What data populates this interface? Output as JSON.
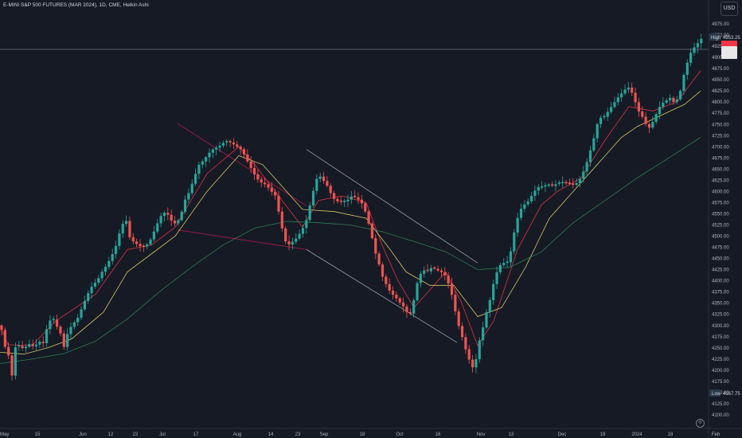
{
  "header": {
    "symbol_title": "E-MINI S&P 500 FUTURES (MAR 2024), 1D, CME, Heikin Ashi",
    "currency": "USD"
  },
  "colors": {
    "up": "#26a69a",
    "down": "#ef5350",
    "ma_fast": "#f23645",
    "ma_mid": "#e8d86a",
    "ma_slow": "#2e8b57",
    "trend_red": "#c2185b",
    "trend_white": "#b2b5be",
    "bg": "#161a25"
  },
  "price_axis": {
    "labels": [
      "4975.00",
      "4950.00",
      "4925.00",
      "4900.00",
      "4875.00",
      "4850.00",
      "4825.00",
      "4800.00",
      "4775.00",
      "4750.00",
      "4725.00",
      "4700.00",
      "4675.00",
      "4650.00",
      "4625.00",
      "4600.00",
      "4575.00",
      "4550.00",
      "4525.00",
      "4500.00",
      "4475.00",
      "4450.00",
      "4425.00",
      "4400.00",
      "4375.00",
      "4350.00",
      "4325.00",
      "4300.00",
      "4275.00",
      "4250.00",
      "4225.00",
      "4200.00",
      "4175.00",
      "4150.00",
      "4125.00",
      "4100.00"
    ]
  },
  "markers": {
    "high_label": "High",
    "high_value": "4953.25",
    "low_label": "Low",
    "low_value": "4167.75"
  },
  "time_axis": {
    "labels": [
      "May",
      "15",
      "Jun",
      "12",
      "22",
      "Jul",
      "17",
      "Aug",
      "14",
      "23",
      "Sep",
      "18",
      "Oct",
      "16",
      "Nov",
      "13",
      "Dec",
      "18",
      "2024",
      "18",
      "Feb"
    ]
  },
  "chart_data": {
    "type": "candlestick",
    "title": "E-MINI S&P 500 FUTURES (MAR 2024), 1D, CME, Heikin Ashi",
    "ylim": [
      4100,
      5000
    ],
    "y_ticks": [
      4975,
      4950,
      4925,
      4900,
      4875,
      4850,
      4825,
      4800,
      4775,
      4750,
      4725,
      4700,
      4675,
      4650,
      4625,
      4600,
      4575,
      4550,
      4525,
      4500,
      4475,
      4450,
      4425,
      4400,
      4375,
      4350,
      4325,
      4300,
      4275,
      4250,
      4225,
      4200,
      4175,
      4150,
      4125,
      4100
    ],
    "x_labels": [
      "May",
      "15",
      "Jun",
      "12",
      "22",
      "Jul",
      "17",
      "Aug",
      "14",
      "23",
      "Sep",
      "18",
      "Oct",
      "16",
      "Nov",
      "13",
      "Dec",
      "18",
      "2024",
      "18",
      "Feb"
    ],
    "high": 4953.25,
    "low": 4167.75,
    "price_path": [
      [
        0,
        4300
      ],
      [
        3,
        4285
      ],
      [
        6,
        4255
      ],
      [
        8,
        4240
      ],
      [
        12,
        4230
      ],
      [
        16,
        4175
      ],
      [
        20,
        4265
      ],
      [
        26,
        4248
      ],
      [
        32,
        4252
      ],
      [
        38,
        4260
      ],
      [
        43,
        4250
      ],
      [
        48,
        4265
      ],
      [
        55,
        4260
      ],
      [
        60,
        4305
      ],
      [
        66,
        4318
      ],
      [
        70,
        4303
      ],
      [
        76,
        4282
      ],
      [
        80,
        4250
      ],
      [
        86,
        4290
      ],
      [
        92,
        4304
      ],
      [
        98,
        4318
      ],
      [
        104,
        4345
      ],
      [
        110,
        4370
      ],
      [
        116,
        4390
      ],
      [
        122,
        4400
      ],
      [
        128,
        4420
      ],
      [
        134,
        4435
      ],
      [
        140,
        4455
      ],
      [
        146,
        4480
      ],
      [
        152,
        4520
      ],
      [
        158,
        4540
      ],
      [
        162,
        4500
      ],
      [
        166,
        4490
      ],
      [
        172,
        4482
      ],
      [
        178,
        4475
      ],
      [
        184,
        4480
      ],
      [
        190,
        4495
      ],
      [
        196,
        4522
      ],
      [
        202,
        4545
      ],
      [
        208,
        4555
      ],
      [
        212,
        4545
      ],
      [
        216,
        4532
      ],
      [
        220,
        4528
      ],
      [
        226,
        4540
      ],
      [
        232,
        4580
      ],
      [
        238,
        4600
      ],
      [
        244,
        4632
      ],
      [
        250,
        4660
      ],
      [
        256,
        4670
      ],
      [
        262,
        4685
      ],
      [
        268,
        4695
      ],
      [
        274,
        4700
      ],
      [
        280,
        4708
      ],
      [
        286,
        4712
      ],
      [
        292,
        4707
      ],
      [
        298,
        4700
      ],
      [
        304,
        4692
      ],
      [
        310,
        4670
      ],
      [
        316,
        4650
      ],
      [
        322,
        4630
      ],
      [
        328,
        4620
      ],
      [
        334,
        4615
      ],
      [
        340,
        4602
      ],
      [
        346,
        4590
      ],
      [
        350,
        4555
      ],
      [
        354,
        4520
      ],
      [
        358,
        4490
      ],
      [
        362,
        4480
      ],
      [
        366,
        4485
      ],
      [
        372,
        4495
      ],
      [
        378,
        4510
      ],
      [
        384,
        4530
      ],
      [
        390,
        4575
      ],
      [
        396,
        4620
      ],
      [
        400,
        4638
      ],
      [
        406,
        4625
      ],
      [
        412,
        4610
      ],
      [
        418,
        4585
      ],
      [
        424,
        4578
      ],
      [
        430,
        4576
      ],
      [
        436,
        4580
      ],
      [
        442,
        4590
      ],
      [
        448,
        4585
      ],
      [
        454,
        4575
      ],
      [
        458,
        4560
      ],
      [
        462,
        4535
      ],
      [
        466,
        4510
      ],
      [
        470,
        4470
      ],
      [
        474,
        4450
      ],
      [
        478,
        4425
      ],
      [
        482,
        4400
      ],
      [
        486,
        4390
      ],
      [
        490,
        4375
      ],
      [
        496,
        4365
      ],
      [
        502,
        4352
      ],
      [
        508,
        4340
      ],
      [
        514,
        4320
      ],
      [
        518,
        4340
      ],
      [
        522,
        4380
      ],
      [
        526,
        4410
      ],
      [
        530,
        4420
      ],
      [
        534,
        4425
      ],
      [
        538,
        4420
      ],
      [
        542,
        4430
      ],
      [
        548,
        4425
      ],
      [
        554,
        4420
      ],
      [
        558,
        4415
      ],
      [
        562,
        4400
      ],
      [
        566,
        4380
      ],
      [
        570,
        4350
      ],
      [
        574,
        4310
      ],
      [
        578,
        4290
      ],
      [
        582,
        4265
      ],
      [
        586,
        4240
      ],
      [
        590,
        4220
      ],
      [
        594,
        4205
      ],
      [
        598,
        4225
      ],
      [
        602,
        4265
      ],
      [
        606,
        4290
      ],
      [
        610,
        4325
      ],
      [
        614,
        4345
      ],
      [
        618,
        4380
      ],
      [
        622,
        4410
      ],
      [
        626,
        4428
      ],
      [
        630,
        4440
      ],
      [
        634,
        4440
      ],
      [
        638,
        4442
      ],
      [
        642,
        4470
      ],
      [
        646,
        4510
      ],
      [
        650,
        4540
      ],
      [
        654,
        4560
      ],
      [
        658,
        4570
      ],
      [
        662,
        4575
      ],
      [
        666,
        4585
      ],
      [
        670,
        4598
      ],
      [
        676,
        4610
      ],
      [
        682,
        4610
      ],
      [
        688,
        4615
      ],
      [
        694,
        4612
      ],
      [
        700,
        4618
      ],
      [
        706,
        4620
      ],
      [
        712,
        4618
      ],
      [
        718,
        4615
      ],
      [
        722,
        4615
      ],
      [
        726,
        4622
      ],
      [
        730,
        4632
      ],
      [
        734,
        4650
      ],
      [
        738,
        4670
      ],
      [
        742,
        4695
      ],
      [
        746,
        4720
      ],
      [
        750,
        4750
      ],
      [
        754,
        4765
      ],
      [
        758,
        4765
      ],
      [
        764,
        4780
      ],
      [
        770,
        4795
      ],
      [
        776,
        4810
      ],
      [
        782,
        4822
      ],
      [
        786,
        4830
      ],
      [
        790,
        4833
      ],
      [
        794,
        4820
      ],
      [
        798,
        4800
      ],
      [
        802,
        4780
      ],
      [
        806,
        4770
      ],
      [
        810,
        4755
      ],
      [
        814,
        4740
      ],
      [
        818,
        4748
      ],
      [
        822,
        4765
      ],
      [
        826,
        4780
      ],
      [
        830,
        4795
      ],
      [
        834,
        4800
      ],
      [
        838,
        4805
      ],
      [
        842,
        4810
      ],
      [
        846,
        4800
      ],
      [
        850,
        4805
      ],
      [
        854,
        4820
      ],
      [
        858,
        4855
      ],
      [
        862,
        4880
      ],
      [
        866,
        4905
      ],
      [
        870,
        4918
      ],
      [
        874,
        4927
      ],
      [
        878,
        4935
      ],
      [
        882,
        4945
      ]
    ],
    "series": [
      {
        "name": "",
        "color": "#f23645",
        "points": [
          [
            0,
            4300
          ],
          [
            10,
            4257
          ],
          [
            40,
            4255
          ],
          [
            70,
            4310
          ],
          [
            120,
            4370
          ],
          [
            160,
            4470
          ],
          [
            190,
            4480
          ],
          [
            220,
            4520
          ],
          [
            260,
            4640
          ],
          [
            300,
            4700
          ],
          [
            320,
            4660
          ],
          [
            350,
            4590
          ],
          [
            380,
            4520
          ],
          [
            400,
            4580
          ],
          [
            430,
            4590
          ],
          [
            460,
            4575
          ],
          [
            480,
            4480
          ],
          [
            500,
            4400
          ],
          [
            520,
            4340
          ],
          [
            540,
            4380
          ],
          [
            560,
            4420
          ],
          [
            580,
            4350
          ],
          [
            600,
            4255
          ],
          [
            620,
            4310
          ],
          [
            650,
            4470
          ],
          [
            680,
            4570
          ],
          [
            700,
            4600
          ],
          [
            730,
            4630
          ],
          [
            760,
            4715
          ],
          [
            790,
            4790
          ],
          [
            820,
            4780
          ],
          [
            850,
            4800
          ],
          [
            880,
            4870
          ]
        ]
      },
      {
        "name": "",
        "color": "#e8d86a",
        "points": [
          [
            0,
            4240
          ],
          [
            30,
            4236
          ],
          [
            60,
            4250
          ],
          [
            90,
            4270
          ],
          [
            130,
            4330
          ],
          [
            160,
            4420
          ],
          [
            190,
            4460
          ],
          [
            220,
            4500
          ],
          [
            260,
            4600
          ],
          [
            300,
            4680
          ],
          [
            330,
            4660
          ],
          [
            360,
            4600
          ],
          [
            380,
            4560
          ],
          [
            420,
            4555
          ],
          [
            460,
            4540
          ],
          [
            490,
            4470
          ],
          [
            510,
            4420
          ],
          [
            540,
            4390
          ],
          [
            570,
            4390
          ],
          [
            600,
            4320
          ],
          [
            630,
            4340
          ],
          [
            660,
            4430
          ],
          [
            690,
            4540
          ],
          [
            720,
            4600
          ],
          [
            750,
            4660
          ],
          [
            780,
            4720
          ],
          [
            800,
            4745
          ],
          [
            830,
            4770
          ],
          [
            860,
            4795
          ],
          [
            880,
            4825
          ]
        ]
      },
      {
        "name": "",
        "color": "#2e8b57",
        "points": [
          [
            0,
            4215
          ],
          [
            40,
            4225
          ],
          [
            80,
            4237
          ],
          [
            120,
            4265
          ],
          [
            160,
            4315
          ],
          [
            200,
            4375
          ],
          [
            240,
            4430
          ],
          [
            280,
            4480
          ],
          [
            320,
            4518
          ],
          [
            360,
            4533
          ],
          [
            400,
            4530
          ],
          [
            440,
            4525
          ],
          [
            480,
            4510
          ],
          [
            520,
            4488
          ],
          [
            560,
            4465
          ],
          [
            600,
            4425
          ],
          [
            640,
            4430
          ],
          [
            680,
            4465
          ],
          [
            720,
            4530
          ],
          [
            760,
            4580
          ],
          [
            800,
            4630
          ],
          [
            840,
            4675
          ],
          [
            880,
            4721
          ]
        ]
      }
    ],
    "trendlines": [
      {
        "color": "#c2185b",
        "points": [
          [
            223,
            4752
          ],
          [
            385,
            4568
          ]
        ]
      },
      {
        "color": "#c2185b",
        "points": [
          [
            223,
            4514
          ],
          [
            385,
            4470
          ]
        ]
      },
      {
        "color": "#b2b5be",
        "points": [
          [
            385,
            4694
          ],
          [
            600,
            4440
          ]
        ]
      },
      {
        "color": "#b2b5be",
        "points": [
          [
            385,
            4470
          ],
          [
            574,
            4262
          ]
        ]
      }
    ],
    "horizontal_line": 4950
  }
}
